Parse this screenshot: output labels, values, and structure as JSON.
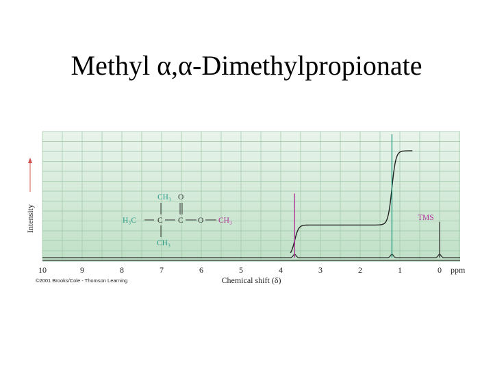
{
  "slide": {
    "title": "Methyl α,α-Dimethylpropionate"
  },
  "colors": {
    "grid_bg_top": "#e9f4eb",
    "grid_bg_bottom": "#bfe0c6",
    "grid_line": "#9cc4a4",
    "spectrum": "#333333",
    "integral": "#222222",
    "peak_ester_methyl": "#b0309a",
    "peak_tert_butyl": "#1a9a7a",
    "tms_label": "#b0309a",
    "structure_teal": "#2a9a8a",
    "structure_magenta": "#b0309a",
    "structure_black": "#333333"
  },
  "chart_data": {
    "type": "line",
    "title": "",
    "xlabel": "Chemical shift (δ)",
    "ylabel": "Intensity",
    "x_unit": "ppm",
    "xlim": [
      10,
      0
    ],
    "x_ticks": [
      10,
      9,
      8,
      7,
      6,
      5,
      4,
      3,
      2,
      1,
      0
    ],
    "x_reversed": true,
    "grid": true,
    "peaks": [
      {
        "shift": 3.65,
        "relative_height": 0.52,
        "color": "peak_ester_methyl",
        "assignment": "O-CH3"
      },
      {
        "shift": 1.2,
        "relative_height": 1.0,
        "color": "peak_tert_butyl",
        "assignment": "C(CH3)3"
      },
      {
        "shift": 0.0,
        "relative_height": 0.29,
        "color": "spectrum",
        "assignment": "TMS"
      }
    ],
    "integral_steps": [
      {
        "shift": 3.65,
        "cumulative_height": 0.24
      },
      {
        "shift": 1.2,
        "cumulative_height": 0.81
      }
    ],
    "annotations": [
      {
        "text": "TMS",
        "shift": 0.0
      }
    ],
    "credit": "©2001 Brooks/Cole - Thomson Learning",
    "structure": {
      "top_methyl": "CH₃",
      "carbonyl_oxygen": "O",
      "left_methyl": "H₃C",
      "quaternary_carbon": "C",
      "carbonyl_carbon": "C",
      "ester_oxygen": "O",
      "ester_methyl": "CH₃",
      "bottom_methyl": "CH₃"
    }
  }
}
